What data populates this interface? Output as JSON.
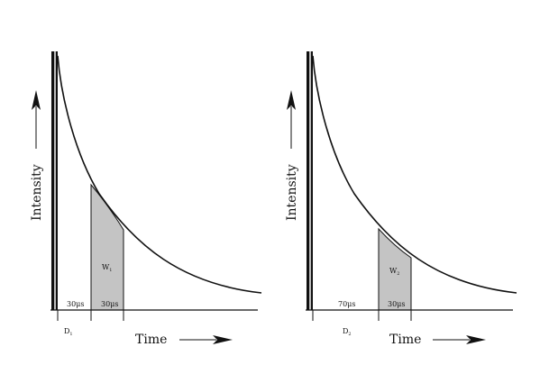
{
  "panels": [
    {
      "ylabel": "Intensity",
      "xlabel": "Time",
      "delay_label": "30μs",
      "gate_label": "30μs",
      "window_main": "W",
      "window_sub": "1",
      "delay_main": "D",
      "delay_sub": "1"
    },
    {
      "ylabel": "Intensity",
      "xlabel": "Time",
      "delay_label": "70μs",
      "gate_label": "30μs",
      "window_main": "W",
      "window_sub": "2",
      "delay_main": "D",
      "delay_sub": "2"
    }
  ],
  "colors": {
    "ink": "#111111",
    "gate_fill": "#c4c4c4"
  }
}
